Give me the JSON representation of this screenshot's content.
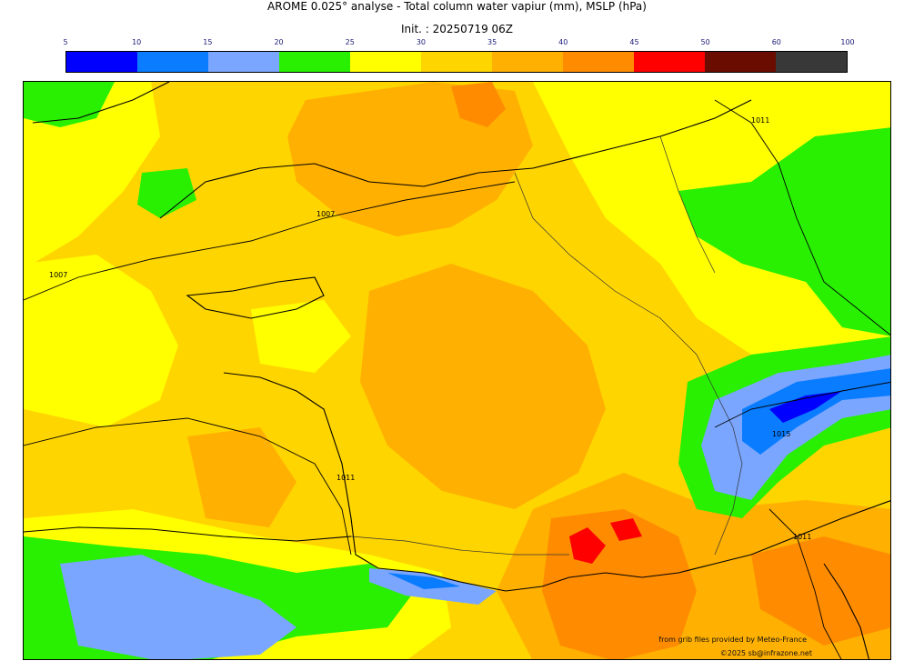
{
  "title": "AROME 0.025° analyse - Total column water vapiur (mm), MSLP (hPa)",
  "init": "Init. : 20250719 06Z",
  "colorbar": {
    "ticks": [
      "5",
      "10",
      "15",
      "20",
      "25",
      "30",
      "35",
      "40",
      "45",
      "50",
      "60",
      "100"
    ],
    "colors": [
      "#0000ff",
      "#0a7cff",
      "#7aa6ff",
      "#28f000",
      "#ffff00",
      "#ffd500",
      "#ffb000",
      "#ff8c00",
      "#ff0000",
      "#6a0d00",
      "#383838"
    ]
  },
  "isobars": {
    "labels": [
      "1007",
      "1007",
      "1011",
      "1011",
      "1015",
      "1011"
    ]
  },
  "credits": {
    "source": "from grib files provided by Meteo-France",
    "copyright": "©2025 sb@infrazone.net"
  }
}
